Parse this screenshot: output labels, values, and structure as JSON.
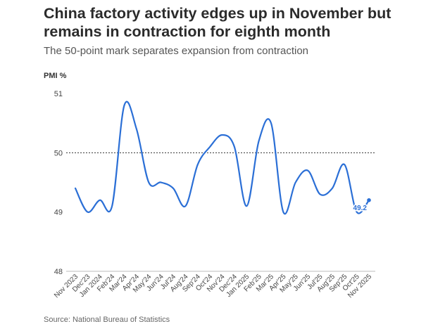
{
  "chart_data": {
    "type": "line",
    "title": "China factory activity edges up in November but remains in contraction for eighth month",
    "subtitle": "The 50-point mark separates expansion from contraction",
    "ylabel": "PMI %",
    "xlabel": "",
    "ylim": [
      48,
      51
    ],
    "yticks": [
      48,
      49,
      50,
      51
    ],
    "reference_line": 50,
    "grid": false,
    "line_color": "#2b6fd6",
    "categories": [
      "Nov 2023",
      "Dec'23",
      "Jan 2024",
      "Feb'24",
      "Mar'24",
      "Apr'24",
      "May'24",
      "Jun'24",
      "Jul'24",
      "Aug'24",
      "Sep'24",
      "Oct'24",
      "Nov'24",
      "Dec'24",
      "Jan 2025",
      "Feb'25",
      "Mar'25",
      "Apr'25",
      "May'25",
      "Jun'25",
      "Jul'25",
      "Aug'25",
      "Sep'25",
      "Oct'25",
      "Nov 2025"
    ],
    "series": [
      {
        "values": [
          49.4,
          49.0,
          49.2,
          49.1,
          50.8,
          50.4,
          49.5,
          49.5,
          49.4,
          49.1,
          49.8,
          50.1,
          50.3,
          50.1,
          49.1,
          50.2,
          50.5,
          49.0,
          49.5,
          49.7,
          49.3,
          49.4,
          49.8,
          49.0,
          49.2
        ]
      }
    ],
    "data_labels": [
      {
        "index": 24,
        "text": "49.2"
      }
    ],
    "source": "Source: National Bureau of Statistics"
  }
}
